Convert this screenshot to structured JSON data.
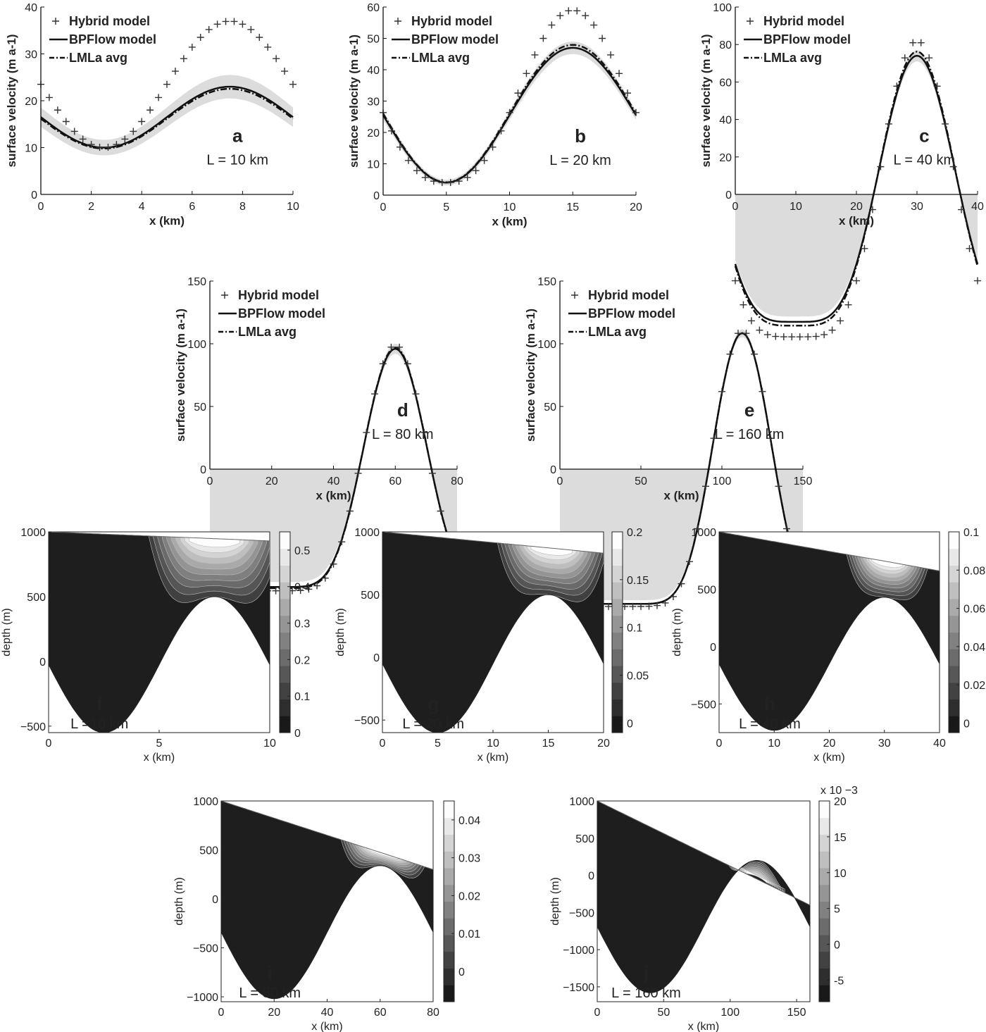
{
  "colors": {
    "hybrid": "#333333",
    "bpflow": "#111111",
    "lmla": "#111111",
    "band": "#dcdcdc"
  },
  "chart_data": [
    {
      "type": "line",
      "panel": "a",
      "length_label": "L = 10 km",
      "xlabel": "x (km)",
      "ylabel": "surface velocity (m a-1)",
      "xlim": [
        0,
        10
      ],
      "ylim": [
        0,
        40
      ],
      "xticks": [
        "0",
        "2",
        "4",
        "6",
        "8",
        "10"
      ],
      "yticks": [
        "0",
        "10",
        "20",
        "30",
        "40"
      ],
      "legend": [
        "Hybrid model",
        "BPFlow model",
        "LMLa avg"
      ],
      "profile": {
        "base": 16.5,
        "amp": 6.5,
        "peak_x": 7.5,
        "sharp": 1
      },
      "band": 2.5,
      "lmla_factor": 0.98,
      "hybrid": {
        "base": 23.5,
        "amp": 13.5,
        "peak_x": 7.5,
        "sharp": 1
      }
    },
    {
      "type": "line",
      "panel": "b",
      "length_label": "L = 20 km",
      "xlabel": "x (km)",
      "ylabel": "surface velocity (m a-1)",
      "xlim": [
        0,
        20
      ],
      "ylim": [
        0,
        60
      ],
      "xticks": [
        "0",
        "5",
        "10",
        "15",
        "20"
      ],
      "yticks": [
        "0",
        "10",
        "20",
        "30",
        "40",
        "50",
        "60"
      ],
      "legend": [
        "Hybrid model",
        "BPFlow model",
        "LMLa avg"
      ],
      "profile": {
        "base": 25.5,
        "amp": 21.5,
        "peak_x": 15,
        "sharp": 1
      },
      "band": 2.0,
      "lmla_factor": 1.02,
      "hybrid": {
        "base": 31.5,
        "amp": 27.5,
        "peak_x": 15,
        "sharp": 1.3
      }
    },
    {
      "type": "line",
      "panel": "c",
      "length_label": "L = 40 km",
      "xlabel": "x (km)",
      "ylabel": "surface velocity (m a-1)",
      "xlim": [
        0,
        40
      ],
      "ylim": [
        0,
        100
      ],
      "xticks": [
        "0",
        "10",
        "20",
        "30",
        "40"
      ],
      "yticks": [
        "0",
        "20",
        "40",
        "60",
        "80",
        "100"
      ],
      "legend": [
        "Hybrid model",
        "BPFlow model",
        "LMLa avg"
      ],
      "profile": {
        "base": 3,
        "amp": 71,
        "peak_x": 30,
        "sharp": 2.2
      },
      "band": 3.0,
      "lmla_factor": 1.03,
      "hybrid": {
        "base": 3,
        "amp": 79,
        "peak_x": 30,
        "sharp": 2.4
      }
    },
    {
      "type": "line",
      "panel": "d",
      "length_label": "L = 80 km",
      "xlabel": "x (km)",
      "ylabel": "surface velocity (m a-1)",
      "xlim": [
        0,
        80
      ],
      "ylim": [
        0,
        150
      ],
      "xticks": [
        "0",
        "20",
        "40",
        "60",
        "80"
      ],
      "yticks": [
        "0",
        "50",
        "100",
        "150"
      ],
      "legend": [
        "Hybrid model",
        "BPFlow model",
        "LMLa avg"
      ],
      "profile": {
        "base": 1,
        "amp": 95,
        "peak_x": 60,
        "sharp": 3.2
      },
      "band": 4.0,
      "lmla_factor": 1.01,
      "hybrid": {
        "base": 1,
        "amp": 98,
        "peak_x": 60,
        "sharp": 3.2
      }
    },
    {
      "type": "line",
      "panel": "e",
      "length_label": "L = 160 km",
      "xlabel": "x (km)",
      "ylabel": "surface velocity (m a-1)",
      "xlim": [
        0,
        160
      ],
      "ylim": [
        0,
        150
      ],
      "xticks": [
        "0",
        "50",
        "100",
        "150"
      ],
      "yticks": [
        "0",
        "50",
        "100",
        "150"
      ],
      "legend": [
        "Hybrid model",
        "BPFlow model",
        "LMLa avg"
      ],
      "profile": {
        "base": 0.5,
        "amp": 108,
        "peak_x": 120,
        "sharp": 3.6
      },
      "band": 3.0,
      "lmla_factor": 1.0,
      "hybrid": {
        "base": 0.5,
        "amp": 110,
        "peak_x": 120,
        "sharp": 3.6
      }
    },
    {
      "type": "heatmap",
      "panel": "f",
      "length_label": "L =10 km",
      "xlabel": "x (km)",
      "ylabel": "depth (m)",
      "xlim": [
        0,
        10
      ],
      "ylim": [
        -550,
        1000
      ],
      "xticks": [
        "0",
        "5",
        "10"
      ],
      "yticks": [
        "-500",
        "0",
        "500",
        "1000"
      ],
      "colorbar": {
        "ticks": [
          "0",
          "0.1",
          "0.2",
          "0.3",
          "0.4",
          "0.5"
        ],
        "min": 0,
        "max": 0.55,
        "tick_values": [
          0,
          0.1,
          0.2,
          0.3,
          0.4,
          0.5
        ],
        "exponent": ""
      },
      "geometry": {
        "surf_left": 1000,
        "surf_right": 930,
        "bed_mean": -25,
        "bed_amp": 525
      },
      "core": {
        "x": 7.5,
        "width": 1.7,
        "depth_top": 1.0,
        "floor": 0.55
      }
    },
    {
      "type": "heatmap",
      "panel": "g",
      "length_label": "L = 20 km",
      "xlabel": "x (km)",
      "ylabel": "depth (m)",
      "xlim": [
        0,
        20
      ],
      "ylim": [
        -600,
        1000
      ],
      "xticks": [
        "0",
        "5",
        "10",
        "15",
        "20"
      ],
      "yticks": [
        "-500",
        "0",
        "500",
        "1000"
      ],
      "colorbar": {
        "ticks": [
          "0",
          "0.05",
          "0.1",
          "0.15",
          "0.2"
        ],
        "min": -0.01,
        "max": 0.2,
        "tick_values": [
          0,
          0.05,
          0.1,
          0.15,
          0.2
        ],
        "exponent": ""
      },
      "geometry": {
        "surf_left": 1000,
        "surf_right": 830,
        "bed_mean": -50,
        "bed_amp": 550
      },
      "core": {
        "x": 15.3,
        "width": 2.8,
        "depth_top": 1.0,
        "floor": 0.55
      }
    },
    {
      "type": "heatmap",
      "panel": "h",
      "length_label": "L = 40 km",
      "xlabel": "x (km)",
      "ylabel": "depth (m)",
      "xlim": [
        0,
        40
      ],
      "ylim": [
        -750,
        1000
      ],
      "xticks": [
        "0",
        "10",
        "20",
        "30",
        "40"
      ],
      "yticks": [
        "-500",
        "0",
        "500",
        "1000"
      ],
      "colorbar": {
        "ticks": [
          "0",
          "0.02",
          "0.04",
          "0.06",
          "0.08",
          "0.1"
        ],
        "min": -0.005,
        "max": 0.1,
        "tick_values": [
          0,
          0.02,
          0.04,
          0.06,
          0.08,
          0.1
        ],
        "exponent": ""
      },
      "geometry": {
        "surf_left": 1000,
        "surf_right": 660,
        "bed_mean": -150,
        "bed_amp": 580
      },
      "core": {
        "x": 30.5,
        "width": 4.2,
        "depth_top": 1.0,
        "floor": 0.45
      }
    },
    {
      "type": "heatmap",
      "panel": "i",
      "length_label": "L = 80 km",
      "xlabel": "x (km)",
      "ylabel": "depth (m)",
      "xlim": [
        0,
        80
      ],
      "ylim": [
        -1050,
        1000
      ],
      "xticks": [
        "0",
        "20",
        "40",
        "60",
        "80"
      ],
      "yticks": [
        "-1000",
        "-500",
        "0",
        "500",
        "1000"
      ],
      "colorbar": {
        "ticks": [
          "0",
          "0.01",
          "0.02",
          "0.03",
          "0.04"
        ],
        "min": -0.008,
        "max": 0.045,
        "tick_values": [
          0,
          0.01,
          0.02,
          0.03,
          0.04
        ],
        "exponent": ""
      },
      "geometry": {
        "surf_left": 1000,
        "surf_right": 300,
        "bed_mean": -340,
        "bed_amp": 680
      },
      "core": {
        "x": 61,
        "width": 9,
        "depth_top": 1.0,
        "floor": 0.45
      }
    },
    {
      "type": "heatmap",
      "panel": "j",
      "length_label": "L = 160 km",
      "xlabel": "x (km)",
      "ylabel": "depth (m)",
      "xlim": [
        0,
        160
      ],
      "ylim": [
        -1700,
        1000
      ],
      "xticks": [
        "0",
        "50",
        "100",
        "150"
      ],
      "yticks": [
        "-1500",
        "-1000",
        "-500",
        "0",
        "500",
        "1000"
      ],
      "colorbar": {
        "ticks": [
          "-5",
          "0",
          "5",
          "10",
          "15",
          "20"
        ],
        "min": -8,
        "max": 20,
        "tick_values": [
          -5,
          0,
          5,
          10,
          15,
          20
        ],
        "exponent": "x 10 −3"
      },
      "geometry": {
        "surf_left": 1000,
        "surf_right": -400,
        "bed_mean": -690,
        "bed_amp": 890
      },
      "core": {
        "x": 120,
        "width": 12,
        "depth_top": 1.0,
        "floor": 0.4
      }
    }
  ]
}
